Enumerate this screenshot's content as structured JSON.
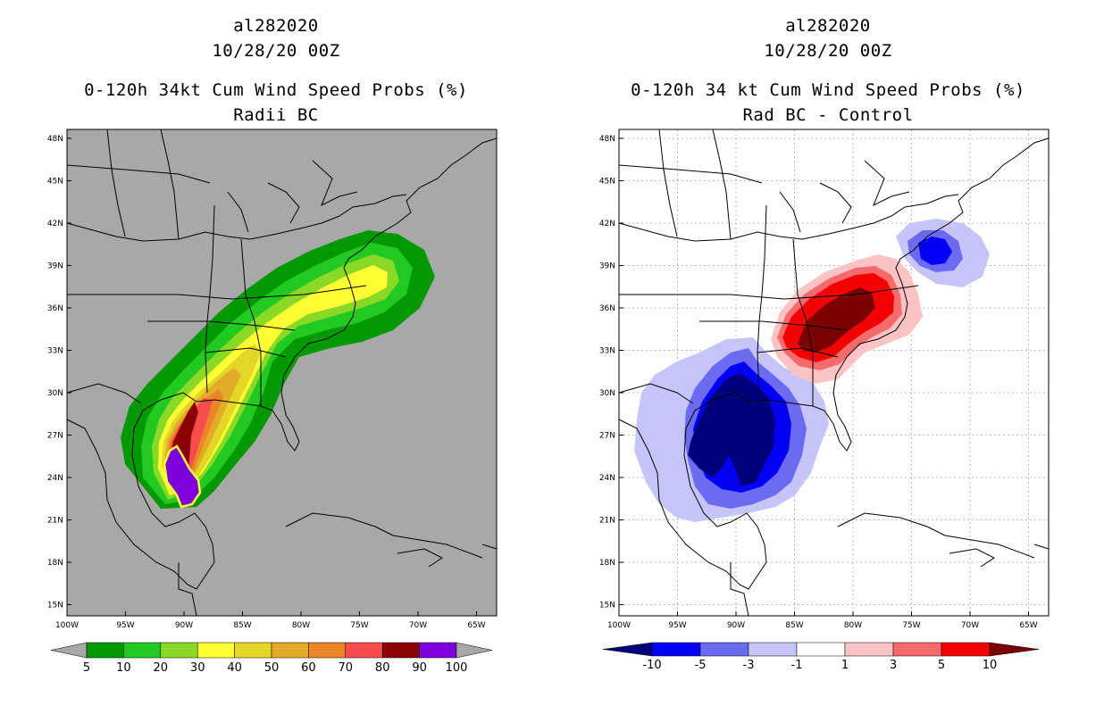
{
  "left_panel": {
    "storm_id": "al282020",
    "datetime": "10/28/20 00Z",
    "title": "0-120h 34kt Cum Wind Speed Probs (%)",
    "subtitle": "Radii BC",
    "colorbar": {
      "labels": [
        "5",
        "10",
        "20",
        "30",
        "40",
        "50",
        "60",
        "70",
        "80",
        "90",
        "100"
      ],
      "colors": [
        "#009900",
        "#21c921",
        "#8ad926",
        "#ffff33",
        "#e4d627",
        "#e2ab28",
        "#ec8428",
        "#f64c4c",
        "#8b0000",
        "#7f00df"
      ],
      "background": "#a8a8a8"
    }
  },
  "right_panel": {
    "storm_id": "al282020",
    "datetime": "10/28/20 00Z",
    "title": "0-120h 34 kt Cum Wind Speed Probs (%)",
    "subtitle": "Rad BC - Control",
    "colorbar": {
      "labels": [
        "-10",
        "-5",
        "-3",
        "-1",
        "1",
        "3",
        "5",
        "10"
      ],
      "colors": [
        "#00007b",
        "#0000f5",
        "#6b6bf1",
        "#c5c5f9",
        "#ffffff",
        "#fbc3c3",
        "#f56b6b",
        "#f50000",
        "#7b0000"
      ]
    }
  },
  "axes": {
    "lat_labels": [
      "48N",
      "45N",
      "42N",
      "39N",
      "36N",
      "33N",
      "30N",
      "27N",
      "24N",
      "21N",
      "18N",
      "15N"
    ],
    "lon_labels": [
      "100W",
      "95W",
      "90W",
      "85W",
      "80W",
      "75W",
      "70W",
      "65W"
    ],
    "lat_range": [
      14,
      48.5
    ],
    "lon_range": [
      -100,
      -63
    ]
  }
}
